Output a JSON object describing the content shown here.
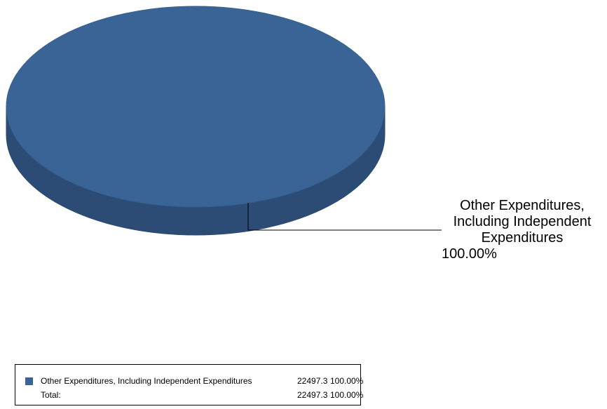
{
  "chart_data": {
    "type": "pie",
    "slices": [
      {
        "label": "Other Expenditures, Including Independent Expenditures",
        "value": 22497.3,
        "percent": "100.00%",
        "color": "#3a6496"
      }
    ],
    "callout": {
      "label": "Other Expenditures, Including Independent Expenditures",
      "percent": "100.00%"
    },
    "legend": {
      "rows": [
        {
          "label": "Other Expenditures, Including Independent Expenditures",
          "value": "22497.3",
          "percent": "100.00%"
        },
        {
          "label": "Total:",
          "value": "22497.3",
          "percent": "100.00%"
        }
      ]
    },
    "style": "3d"
  }
}
